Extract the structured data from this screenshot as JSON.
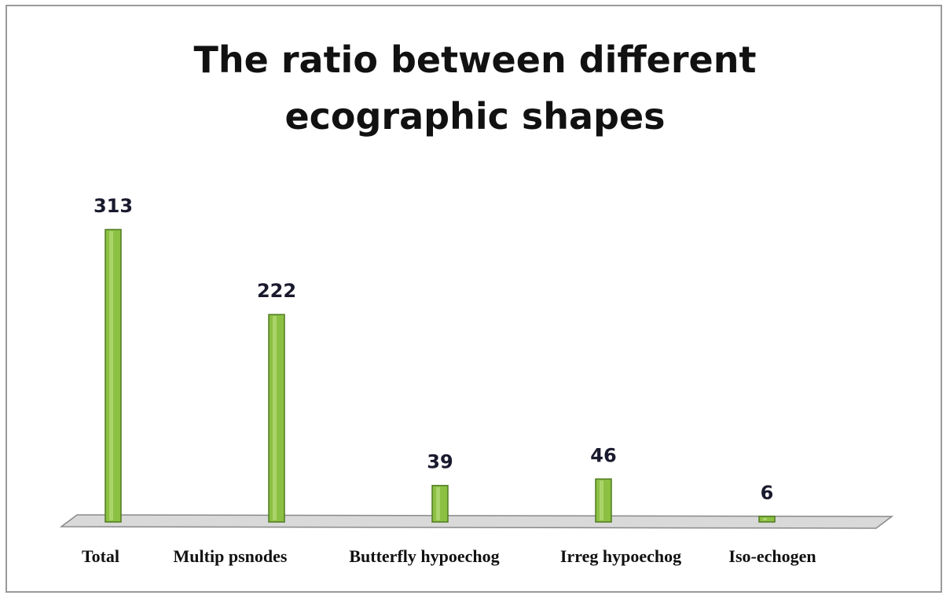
{
  "chart_data": {
    "type": "bar",
    "title": "The ratio between different ecographic shapes",
    "categories": [
      "Total",
      "Multip psnodes",
      "Butterfly hypoechog",
      "Irreg hypoechog",
      "Iso-echogen"
    ],
    "values": [
      313,
      222,
      39,
      46,
      6
    ],
    "data_labels": [
      "313",
      "222",
      "39",
      "46",
      "6"
    ],
    "xlabel": "",
    "ylabel": "",
    "ylim": [
      0,
      313
    ],
    "grid": false,
    "legend": "none",
    "bar_color": "#8cc043",
    "bar_edge_color": "#4e7a1f",
    "floor_color": "#d9d9d9"
  }
}
